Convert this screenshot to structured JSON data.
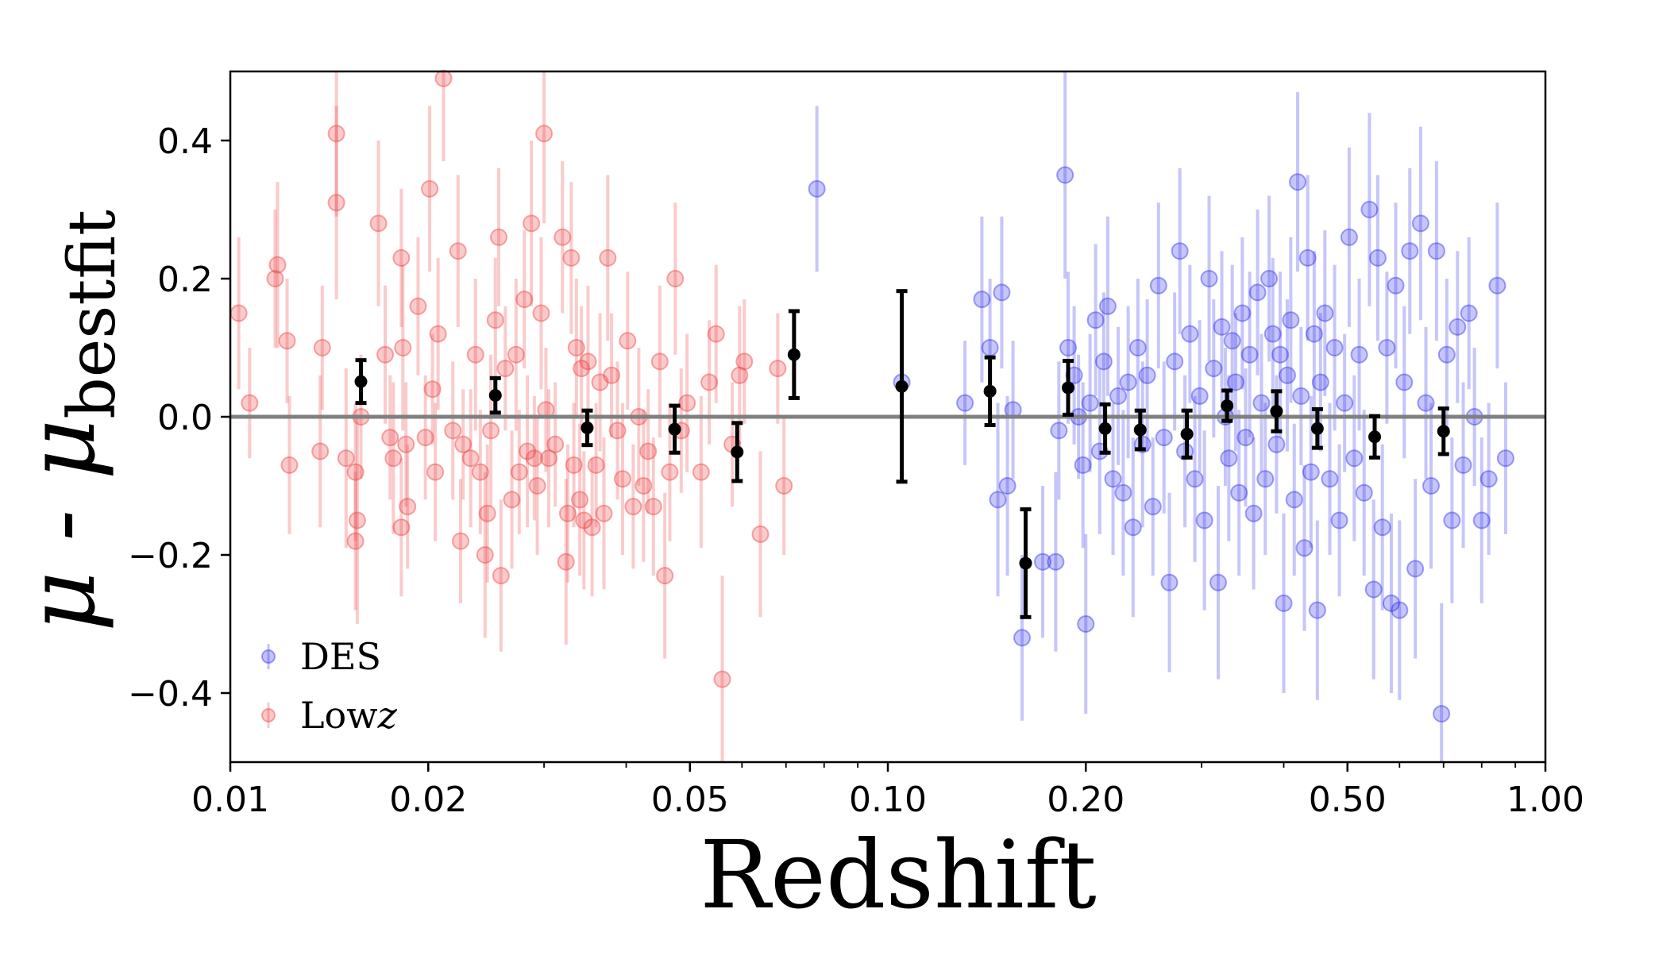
{
  "chart_data": {
    "type": "scatter",
    "xlabel": "Redshift",
    "ylabel": {
      "main": "μ - μ",
      "subscript": "bestfit"
    },
    "x_scale": "log",
    "xlim": [
      0.01,
      1.0
    ],
    "ylim": [
      -0.5,
      0.5
    ],
    "x_ticks": [
      0.01,
      0.02,
      0.05,
      0.1,
      0.2,
      0.5,
      1.0
    ],
    "x_tick_labels": [
      "0.01",
      "0.02",
      "0.05",
      "0.10",
      "0.20",
      "0.50",
      "1.00"
    ],
    "y_ticks": [
      0.4,
      0.2,
      0.0,
      -0.2,
      -0.4
    ],
    "y_tick_labels": [
      "0.4",
      "0.2",
      "0.0",
      "−0.2",
      "−0.4"
    ],
    "grid": false,
    "legend_position": "lower-left",
    "reference_line": {
      "y": 0.0,
      "color": "#808080"
    },
    "colors": {
      "DES": "#3333ee",
      "Lowz": "#ee4444",
      "binned": "#000000"
    },
    "series": [
      {
        "name": "Lowz",
        "label_main": "Low",
        "label_italic": "z",
        "color": "#ee4444",
        "points": [
          [
            0.0103,
            0.15,
            0.11
          ],
          [
            0.0107,
            0.02,
            0.08
          ],
          [
            0.0118,
            0.22,
            0.12
          ],
          [
            0.0117,
            0.2,
            0.1
          ],
          [
            0.0122,
            0.11,
            0.09
          ],
          [
            0.0123,
            -0.07,
            0.1
          ],
          [
            0.0138,
            0.1,
            0.09
          ],
          [
            0.0137,
            -0.05,
            0.11
          ],
          [
            0.0145,
            0.41,
            0.12
          ],
          [
            0.0145,
            0.31,
            0.14
          ],
          [
            0.015,
            -0.06,
            0.13
          ],
          [
            0.0155,
            -0.08,
            0.1
          ],
          [
            0.0156,
            -0.15,
            0.15
          ],
          [
            0.0155,
            -0.18,
            0.1
          ],
          [
            0.0158,
            0.0,
            0.09
          ],
          [
            0.0168,
            0.28,
            0.12
          ],
          [
            0.0172,
            0.09,
            0.1
          ],
          [
            0.0175,
            -0.03,
            0.09
          ],
          [
            0.0177,
            -0.06,
            0.11
          ],
          [
            0.0182,
            0.23,
            0.1
          ],
          [
            0.0183,
            0.1,
            0.12
          ],
          [
            0.0185,
            -0.04,
            0.09
          ],
          [
            0.0182,
            -0.16,
            0.1
          ],
          [
            0.0186,
            -0.13,
            0.09
          ],
          [
            0.0193,
            0.16,
            0.1
          ],
          [
            0.0198,
            -0.03,
            0.09
          ],
          [
            0.0201,
            0.33,
            0.12
          ],
          [
            0.0203,
            0.04,
            0.08
          ],
          [
            0.0205,
            -0.08,
            0.1
          ],
          [
            0.0207,
            0.12,
            0.11
          ],
          [
            0.0211,
            0.49,
            0.12
          ],
          [
            0.0218,
            -0.02,
            0.1
          ],
          [
            0.0222,
            0.24,
            0.11
          ],
          [
            0.0224,
            -0.18,
            0.09
          ],
          [
            0.0226,
            -0.04,
            0.08
          ],
          [
            0.0232,
            -0.06,
            0.1
          ],
          [
            0.0236,
            0.09,
            0.11
          ],
          [
            0.024,
            -0.08,
            0.09
          ],
          [
            0.0244,
            -0.2,
            0.12
          ],
          [
            0.0246,
            -0.14,
            0.1
          ],
          [
            0.0249,
            -0.02,
            0.11
          ],
          [
            0.0253,
            0.14,
            0.09
          ],
          [
            0.0256,
            0.26,
            0.1
          ],
          [
            0.0258,
            -0.23,
            0.11
          ],
          [
            0.0262,
            0.07,
            0.09
          ],
          [
            0.0268,
            -0.12,
            0.1
          ],
          [
            0.0272,
            0.09,
            0.11
          ],
          [
            0.0275,
            -0.08,
            0.09
          ],
          [
            0.028,
            0.17,
            0.1
          ],
          [
            0.0283,
            -0.05,
            0.11
          ],
          [
            0.0287,
            0.28,
            0.12
          ],
          [
            0.029,
            -0.06,
            0.09
          ],
          [
            0.0293,
            -0.1,
            0.1
          ],
          [
            0.0297,
            0.15,
            0.11
          ],
          [
            0.03,
            0.41,
            0.13
          ],
          [
            0.0302,
            0.01,
            0.09
          ],
          [
            0.0305,
            -0.06,
            0.1
          ],
          [
            0.0312,
            -0.04,
            0.09
          ],
          [
            0.032,
            0.26,
            0.11
          ],
          [
            0.0324,
            -0.21,
            0.12
          ],
          [
            0.0326,
            -0.14,
            0.1
          ],
          [
            0.033,
            0.23,
            0.11
          ],
          [
            0.0333,
            -0.07,
            0.09
          ],
          [
            0.0336,
            0.1,
            0.1
          ],
          [
            0.034,
            -0.12,
            0.11
          ],
          [
            0.0342,
            0.07,
            0.09
          ],
          [
            0.0345,
            -0.15,
            0.1
          ],
          [
            0.035,
            0.08,
            0.11
          ],
          [
            0.0355,
            -0.16,
            0.1
          ],
          [
            0.036,
            -0.07,
            0.09
          ],
          [
            0.0365,
            0.05,
            0.1
          ],
          [
            0.037,
            -0.14,
            0.11
          ],
          [
            0.0375,
            0.23,
            0.12
          ],
          [
            0.038,
            0.06,
            0.09
          ],
          [
            0.0388,
            -0.02,
            0.1
          ],
          [
            0.0395,
            -0.09,
            0.11
          ],
          [
            0.0402,
            0.11,
            0.1
          ],
          [
            0.041,
            -0.13,
            0.09
          ],
          [
            0.0418,
            0.0,
            0.1
          ],
          [
            0.0425,
            -0.1,
            0.11
          ],
          [
            0.0432,
            -0.05,
            0.09
          ],
          [
            0.044,
            -0.13,
            0.1
          ],
          [
            0.045,
            0.08,
            0.11
          ],
          [
            0.0458,
            -0.23,
            0.12
          ],
          [
            0.0466,
            -0.08,
            0.1
          ],
          [
            0.0475,
            0.2,
            0.11
          ],
          [
            0.0485,
            -0.02,
            0.09
          ],
          [
            0.0495,
            0.02,
            0.1
          ],
          [
            0.052,
            -0.08,
            0.11
          ],
          [
            0.0535,
            0.05,
            0.09
          ],
          [
            0.0548,
            0.12,
            0.1
          ],
          [
            0.056,
            -0.38,
            0.15
          ],
          [
            0.058,
            -0.04,
            0.09
          ],
          [
            0.0595,
            0.06,
            0.1
          ],
          [
            0.0605,
            0.08,
            0.09
          ],
          [
            0.064,
            -0.17,
            0.12
          ],
          [
            0.068,
            0.07,
            0.08
          ],
          [
            0.0695,
            -0.1,
            0.1
          ]
        ]
      },
      {
        "name": "DES",
        "label_main": "DES",
        "label_italic": "",
        "color": "#3333ee",
        "points": [
          [
            0.078,
            0.33,
            0.12
          ],
          [
            0.105,
            0.05,
            0.1
          ],
          [
            0.131,
            0.02,
            0.09
          ],
          [
            0.139,
            0.17,
            0.12
          ],
          [
            0.143,
            0.1,
            0.1
          ],
          [
            0.147,
            -0.12,
            0.14
          ],
          [
            0.149,
            0.18,
            0.11
          ],
          [
            0.152,
            -0.1,
            0.13
          ],
          [
            0.155,
            0.01,
            0.1
          ],
          [
            0.16,
            -0.32,
            0.12
          ],
          [
            0.172,
            -0.21,
            0.11
          ],
          [
            0.18,
            -0.21,
            0.13
          ],
          [
            0.182,
            -0.02,
            0.1
          ],
          [
            0.186,
            0.35,
            0.15
          ],
          [
            0.188,
            0.1,
            0.11
          ],
          [
            0.192,
            0.06,
            0.1
          ],
          [
            0.195,
            0.0,
            0.09
          ],
          [
            0.198,
            -0.07,
            0.12
          ],
          [
            0.2,
            -0.3,
            0.13
          ],
          [
            0.203,
            0.02,
            0.1
          ],
          [
            0.207,
            0.14,
            0.11
          ],
          [
            0.21,
            -0.05,
            0.12
          ],
          [
            0.213,
            0.08,
            0.1
          ],
          [
            0.216,
            0.16,
            0.13
          ],
          [
            0.22,
            -0.09,
            0.11
          ],
          [
            0.224,
            0.03,
            0.1
          ],
          [
            0.228,
            -0.11,
            0.12
          ],
          [
            0.232,
            0.05,
            0.11
          ],
          [
            0.236,
            -0.16,
            0.13
          ],
          [
            0.24,
            0.1,
            0.1
          ],
          [
            0.244,
            -0.04,
            0.12
          ],
          [
            0.248,
            0.06,
            0.11
          ],
          [
            0.253,
            -0.13,
            0.1
          ],
          [
            0.258,
            0.19,
            0.12
          ],
          [
            0.263,
            -0.03,
            0.11
          ],
          [
            0.268,
            -0.24,
            0.13
          ],
          [
            0.273,
            0.08,
            0.1
          ],
          [
            0.278,
            0.24,
            0.12
          ],
          [
            0.283,
            -0.05,
            0.11
          ],
          [
            0.288,
            0.12,
            0.1
          ],
          [
            0.293,
            -0.09,
            0.12
          ],
          [
            0.298,
            0.03,
            0.11
          ],
          [
            0.303,
            -0.15,
            0.13
          ],
          [
            0.308,
            0.2,
            0.12
          ],
          [
            0.313,
            0.07,
            0.1
          ],
          [
            0.318,
            -0.24,
            0.14
          ],
          [
            0.322,
            0.13,
            0.11
          ],
          [
            0.326,
            0.0,
            0.1
          ],
          [
            0.33,
            -0.06,
            0.12
          ],
          [
            0.334,
            0.11,
            0.11
          ],
          [
            0.338,
            0.05,
            0.1
          ],
          [
            0.342,
            -0.11,
            0.12
          ],
          [
            0.346,
            0.15,
            0.11
          ],
          [
            0.35,
            -0.03,
            0.1
          ],
          [
            0.355,
            0.09,
            0.12
          ],
          [
            0.36,
            -0.14,
            0.11
          ],
          [
            0.365,
            0.18,
            0.12
          ],
          [
            0.37,
            0.02,
            0.1
          ],
          [
            0.375,
            -0.09,
            0.11
          ],
          [
            0.38,
            0.2,
            0.12
          ],
          [
            0.385,
            0.12,
            0.11
          ],
          [
            0.39,
            -0.04,
            0.1
          ],
          [
            0.395,
            0.09,
            0.12
          ],
          [
            0.4,
            -0.27,
            0.13
          ],
          [
            0.405,
            0.06,
            0.11
          ],
          [
            0.41,
            0.14,
            0.12
          ],
          [
            0.415,
            -0.12,
            0.11
          ],
          [
            0.42,
            0.34,
            0.13
          ],
          [
            0.425,
            0.03,
            0.1
          ],
          [
            0.43,
            -0.19,
            0.12
          ],
          [
            0.435,
            0.23,
            0.12
          ],
          [
            0.44,
            -0.08,
            0.11
          ],
          [
            0.445,
            0.12,
            0.12
          ],
          [
            0.45,
            -0.28,
            0.13
          ],
          [
            0.455,
            0.05,
            0.1
          ],
          [
            0.462,
            0.15,
            0.12
          ],
          [
            0.47,
            -0.09,
            0.11
          ],
          [
            0.478,
            0.1,
            0.12
          ],
          [
            0.486,
            -0.15,
            0.11
          ],
          [
            0.495,
            0.02,
            0.1
          ],
          [
            0.503,
            0.26,
            0.13
          ],
          [
            0.512,
            -0.06,
            0.12
          ],
          [
            0.521,
            0.09,
            0.11
          ],
          [
            0.53,
            -0.11,
            0.12
          ],
          [
            0.54,
            0.3,
            0.14
          ],
          [
            0.548,
            -0.25,
            0.13
          ],
          [
            0.556,
            0.23,
            0.12
          ],
          [
            0.565,
            -0.16,
            0.12
          ],
          [
            0.574,
            0.1,
            0.11
          ],
          [
            0.583,
            -0.27,
            0.13
          ],
          [
            0.592,
            0.19,
            0.12
          ],
          [
            0.6,
            -0.28,
            0.13
          ],
          [
            0.61,
            0.05,
            0.11
          ],
          [
            0.622,
            0.24,
            0.12
          ],
          [
            0.634,
            -0.22,
            0.13
          ],
          [
            0.646,
            0.28,
            0.14
          ],
          [
            0.658,
            0.02,
            0.11
          ],
          [
            0.67,
            -0.1,
            0.12
          ],
          [
            0.683,
            0.24,
            0.13
          ],
          [
            0.695,
            -0.43,
            0.16
          ],
          [
            0.708,
            0.09,
            0.11
          ],
          [
            0.721,
            -0.15,
            0.12
          ],
          [
            0.735,
            0.13,
            0.11
          ],
          [
            0.75,
            -0.07,
            0.12
          ],
          [
            0.765,
            0.15,
            0.11
          ],
          [
            0.78,
            0.0,
            0.1
          ],
          [
            0.8,
            -0.15,
            0.12
          ],
          [
            0.82,
            -0.09,
            0.11
          ],
          [
            0.845,
            0.19,
            0.12
          ],
          [
            0.87,
            -0.06,
            0.11
          ]
        ]
      },
      {
        "name": "",
        "label_main": "",
        "label_italic": "",
        "color": "#000000",
        "points": [
          [
            0.0158,
            0.051,
            0.031
          ],
          [
            0.0253,
            0.031,
            0.025
          ],
          [
            0.0349,
            -0.016,
            0.025
          ],
          [
            0.0474,
            -0.018,
            0.034
          ],
          [
            0.059,
            -0.051,
            0.042
          ],
          [
            0.072,
            0.09,
            0.063
          ],
          [
            0.105,
            0.044,
            0.138
          ],
          [
            0.143,
            0.037,
            0.049
          ],
          [
            0.162,
            -0.212,
            0.078
          ],
          [
            0.188,
            0.042,
            0.039
          ],
          [
            0.214,
            -0.017,
            0.035
          ],
          [
            0.242,
            -0.019,
            0.028
          ],
          [
            0.285,
            -0.025,
            0.034
          ],
          [
            0.328,
            0.016,
            0.022
          ],
          [
            0.39,
            0.008,
            0.029
          ],
          [
            0.45,
            -0.017,
            0.028
          ],
          [
            0.55,
            -0.029,
            0.03
          ],
          [
            0.7,
            -0.021,
            0.033
          ]
        ]
      }
    ]
  }
}
